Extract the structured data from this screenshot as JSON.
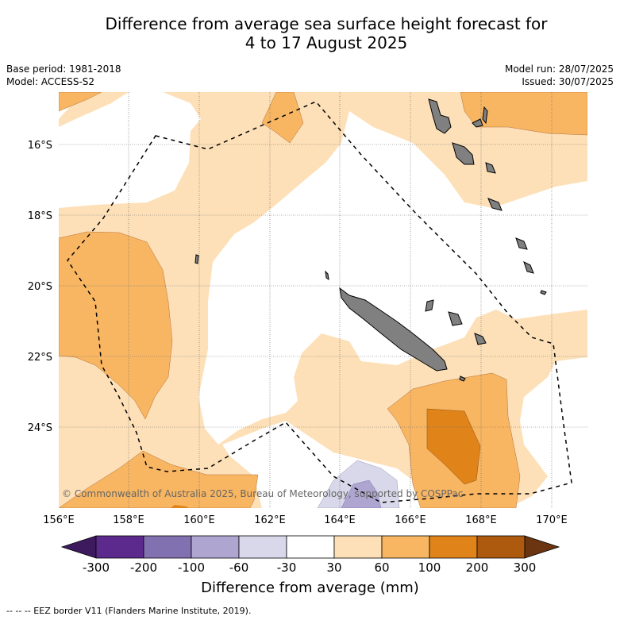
{
  "title_line1": "Difference from average sea surface height forecast for",
  "title_line2": "4 to 17 August 2025",
  "meta": {
    "base_period": "Base period: 1981-2018",
    "model": "Model: ACCESS-S2",
    "model_run": "Model run: 28/07/2025",
    "issued": "Issued: 30/07/2025"
  },
  "map": {
    "lon_labels": [
      "156°E",
      "158°E",
      "160°E",
      "162°E",
      "164°E",
      "166°E",
      "168°E",
      "170°E"
    ],
    "lat_labels": [
      "16°S",
      "18°S",
      "20°S",
      "22°S",
      "24°S"
    ],
    "copyright": "© Commonwealth of Australia 2025, Bureau of Meteorology, supported by COSPPac"
  },
  "colorbar": {
    "ticks": [
      "-300",
      "-200",
      "-100",
      "-60",
      "-30",
      "30",
      "60",
      "100",
      "200",
      "300"
    ],
    "colors": [
      "#3d1a5e",
      "#5b2a8c",
      "#8171b0",
      "#aea6d0",
      "#d8d8ea",
      "#ffffff",
      "#fde0b8",
      "#f8b662",
      "#e0841a",
      "#ad5a0e",
      "#6a3510"
    ],
    "title": "Difference from average (mm)"
  },
  "footer": "--  --  -- EEZ border V11 (Flanders Marine Institute, 2019)."
}
